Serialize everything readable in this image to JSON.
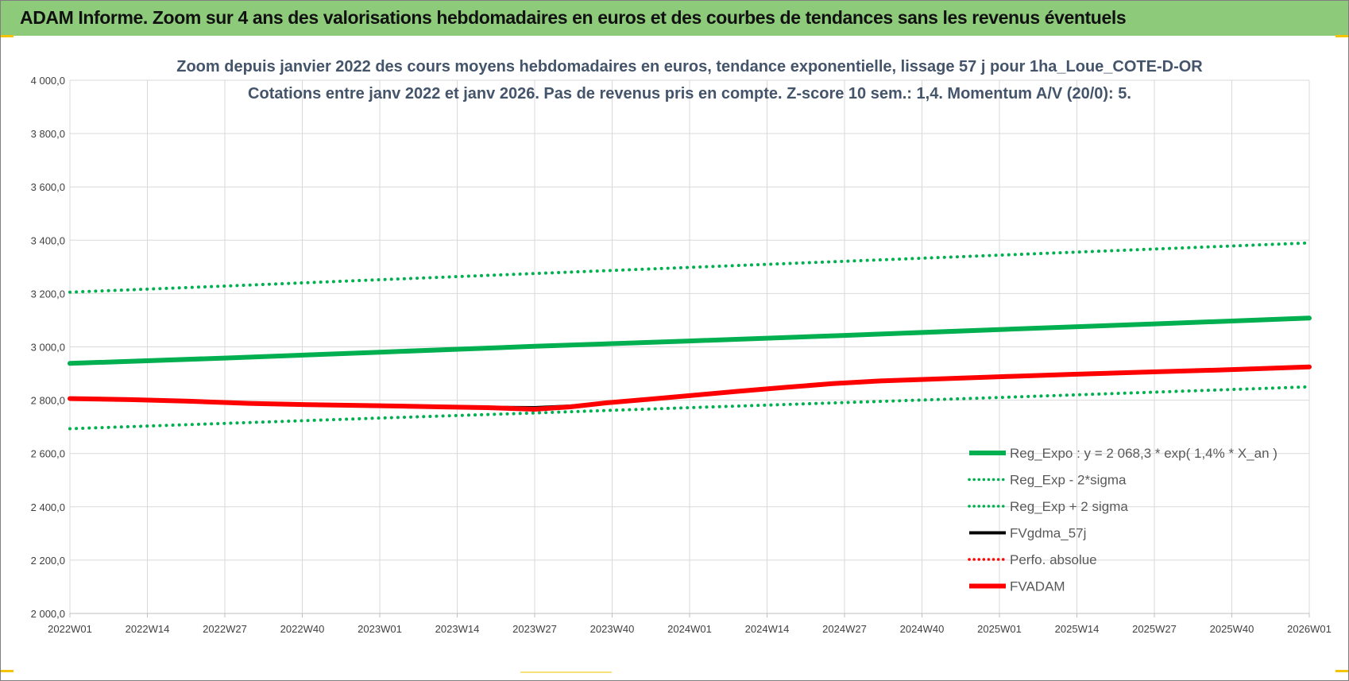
{
  "header": {
    "banner_title": "ADAM Informe. Zoom sur 4 ans des valorisations hebdomadaires en euros et des courbes de tendances sans les revenus éventuels"
  },
  "colors": {
    "banner": "#8dcb7b",
    "reg_green": "#00b050",
    "dot_green": "#00b050",
    "black": "#000000",
    "red": "#ff0000",
    "subtitle": "#44546a"
  },
  "chart_data": {
    "type": "line",
    "subtitle_lines": [
      "Zoom depuis janvier 2022 des cours moyens hebdomadaires en euros, tendance exponentielle, lissage 57 j pour 1ha_Loue_COTE-D-OR",
      "Cotations entre janv 2022 et janv 2026. Pas de revenus pris en compte. Z-score 10 sem.: 1,4. Momentum A/V (20/0): 5."
    ],
    "ylim": [
      2000,
      4000
    ],
    "y_ticks": [
      {
        "value": 2000,
        "label": "2 000,0"
      },
      {
        "value": 2200,
        "label": "2 200,0"
      },
      {
        "value": 2400,
        "label": "2 400,0"
      },
      {
        "value": 2600,
        "label": "2 600,0"
      },
      {
        "value": 2800,
        "label": "2 800,0"
      },
      {
        "value": 3000,
        "label": "3 000,0"
      },
      {
        "value": 3200,
        "label": "3 200,0"
      },
      {
        "value": 3400,
        "label": "3 400,0"
      },
      {
        "value": 3600,
        "label": "3 600,0"
      },
      {
        "value": 3800,
        "label": "3 800,0"
      },
      {
        "value": 4000,
        "label": "4 000,0"
      }
    ],
    "x_ticks": [
      {
        "week": 0,
        "label": "2022W01"
      },
      {
        "week": 13,
        "label": "2022W14"
      },
      {
        "week": 26,
        "label": "2022W27"
      },
      {
        "week": 39,
        "label": "2022W40"
      },
      {
        "week": 52,
        "label": "2023W01"
      },
      {
        "week": 65,
        "label": "2023W14"
      },
      {
        "week": 78,
        "label": "2023W27"
      },
      {
        "week": 91,
        "label": "2023W40"
      },
      {
        "week": 104,
        "label": "2024W01"
      },
      {
        "week": 117,
        "label": "2024W14"
      },
      {
        "week": 130,
        "label": "2024W27"
      },
      {
        "week": 143,
        "label": "2024W40"
      },
      {
        "week": 156,
        "label": "2025W01"
      },
      {
        "week": 169,
        "label": "2025W14"
      },
      {
        "week": 182,
        "label": "2025W27"
      },
      {
        "week": 195,
        "label": "2025W40"
      },
      {
        "week": 208,
        "label": "2026W01"
      }
    ],
    "x_range_weeks": [
      0,
      208
    ],
    "grid": true,
    "legend_position": "bottom-right",
    "series": [
      {
        "name": "Reg_Expo : y = 2 068,3 * exp( 1,4% *  X_an )",
        "style": "solid-thick",
        "color": "#00b050",
        "points": [
          [
            0,
            2938
          ],
          [
            26,
            2958
          ],
          [
            52,
            2980
          ],
          [
            78,
            3002
          ],
          [
            104,
            3022
          ],
          [
            130,
            3043
          ],
          [
            156,
            3065
          ],
          [
            182,
            3086
          ],
          [
            208,
            3108
          ]
        ]
      },
      {
        "name": "Reg_Exp - 2*sigma",
        "style": "dotted",
        "color": "#00b050",
        "points": [
          [
            0,
            2693
          ],
          [
            26,
            2713
          ],
          [
            52,
            2733
          ],
          [
            78,
            2752
          ],
          [
            104,
            2772
          ],
          [
            130,
            2791
          ],
          [
            156,
            2810
          ],
          [
            182,
            2830
          ],
          [
            208,
            2850
          ]
        ]
      },
      {
        "name": "Reg_Exp + 2 sigma",
        "style": "dotted",
        "color": "#00b050",
        "points": [
          [
            0,
            3205
          ],
          [
            26,
            3228
          ],
          [
            52,
            3252
          ],
          [
            78,
            3275
          ],
          [
            104,
            3298
          ],
          [
            130,
            3321
          ],
          [
            156,
            3344
          ],
          [
            182,
            3367
          ],
          [
            208,
            3390
          ]
        ]
      },
      {
        "name": "FVgdma_57j",
        "style": "solid",
        "color": "#000000",
        "points": [
          [
            0,
            2806
          ],
          [
            10,
            2802
          ],
          [
            20,
            2796
          ],
          [
            30,
            2788
          ],
          [
            40,
            2783
          ],
          [
            52,
            2779
          ],
          [
            62,
            2775
          ],
          [
            70,
            2773
          ],
          [
            78,
            2772
          ],
          [
            84,
            2778
          ],
          [
            90,
            2790
          ],
          [
            98,
            2805
          ],
          [
            104,
            2817
          ],
          [
            112,
            2833
          ],
          [
            120,
            2848
          ],
          [
            128,
            2862
          ],
          [
            136,
            2872
          ],
          [
            146,
            2880
          ],
          [
            156,
            2888
          ],
          [
            168,
            2897
          ],
          [
            180,
            2905
          ],
          [
            194,
            2914
          ],
          [
            208,
            2925
          ]
        ]
      },
      {
        "name": "Perfo. absolue",
        "style": "dotted",
        "color": "#ff0000",
        "points": [
          [
            0,
            2806
          ],
          [
            10,
            2802
          ],
          [
            20,
            2796
          ],
          [
            30,
            2788
          ],
          [
            40,
            2783
          ],
          [
            52,
            2779
          ],
          [
            62,
            2775
          ],
          [
            70,
            2772
          ],
          [
            78,
            2766
          ],
          [
            84,
            2775
          ],
          [
            90,
            2790
          ],
          [
            98,
            2805
          ],
          [
            104,
            2817
          ],
          [
            112,
            2833
          ],
          [
            120,
            2848
          ],
          [
            128,
            2862
          ],
          [
            136,
            2872
          ],
          [
            146,
            2880
          ],
          [
            156,
            2888
          ],
          [
            168,
            2897
          ],
          [
            180,
            2905
          ],
          [
            194,
            2914
          ],
          [
            208,
            2925
          ]
        ]
      },
      {
        "name": "FVADAM",
        "style": "solid-thick",
        "color": "#ff0000",
        "points": [
          [
            0,
            2806
          ],
          [
            10,
            2802
          ],
          [
            20,
            2796
          ],
          [
            30,
            2788
          ],
          [
            40,
            2783
          ],
          [
            52,
            2779
          ],
          [
            62,
            2775
          ],
          [
            70,
            2772
          ],
          [
            78,
            2766
          ],
          [
            84,
            2775
          ],
          [
            90,
            2790
          ],
          [
            98,
            2805
          ],
          [
            104,
            2817
          ],
          [
            112,
            2833
          ],
          [
            120,
            2848
          ],
          [
            128,
            2862
          ],
          [
            136,
            2872
          ],
          [
            146,
            2880
          ],
          [
            156,
            2888
          ],
          [
            168,
            2897
          ],
          [
            180,
            2905
          ],
          [
            194,
            2914
          ],
          [
            208,
            2925
          ]
        ]
      }
    ]
  }
}
